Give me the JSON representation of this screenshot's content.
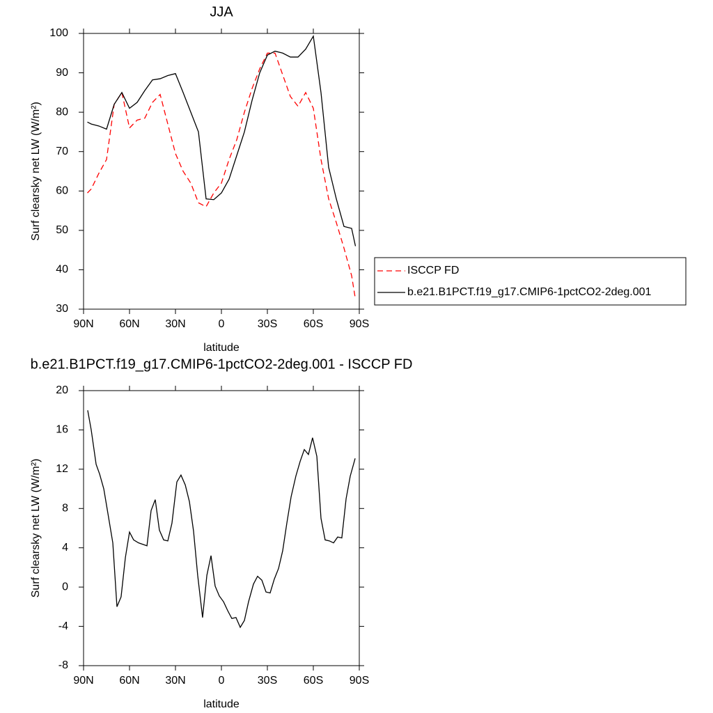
{
  "chart_data": [
    {
      "type": "line",
      "title": "JJA",
      "x_label": "latitude",
      "y_label": "Surf clearsky net LW (W/m²)",
      "x": [
        87.5,
        85,
        80,
        75,
        70,
        65,
        60,
        55,
        50,
        45,
        40,
        35,
        30,
        25,
        20,
        15,
        10,
        5,
        0,
        -5,
        -10,
        -15,
        -20,
        -25,
        -30,
        -35,
        -40,
        -45,
        -50,
        -55,
        -60,
        -65,
        -70,
        -75,
        -80,
        -85,
        -87.5
      ],
      "series": [
        {
          "name": "ISCCP FD",
          "color": "#ff0000",
          "dash": true,
          "values": [
            59.5,
            60.5,
            64.5,
            68,
            82,
            85,
            76,
            78,
            78.5,
            82.5,
            84.5,
            77,
            69.5,
            65,
            62,
            57,
            56,
            59.5,
            62,
            68,
            73,
            80,
            86,
            91,
            95,
            95,
            89.5,
            84,
            81.5,
            85,
            81,
            68,
            58,
            52,
            45.5,
            38.5,
            32.5
          ]
        },
        {
          "name": "b.e21.B1PCT.f19_g17.CMIP6-1pctCO2-2deg.001",
          "color": "#000000",
          "dash": false,
          "values": [
            77.5,
            77,
            76.5,
            75.7,
            82,
            85,
            81,
            82.5,
            85.5,
            88.2,
            88.5,
            89.3,
            89.8,
            85,
            80,
            75,
            58,
            57.8,
            59.5,
            63,
            69,
            75,
            83,
            90,
            94.5,
            95.5,
            95,
            94,
            94,
            96,
            99.3,
            85,
            66,
            58,
            51,
            50.5,
            46
          ]
        }
      ],
      "xlim": [
        90,
        -90
      ],
      "xticks": [
        {
          "value": 90,
          "label": "90N"
        },
        {
          "value": 60,
          "label": "60N"
        },
        {
          "value": 30,
          "label": "30N"
        },
        0,
        {
          "value": -30,
          "label": "30S"
        },
        {
          "value": -60,
          "label": "60S"
        },
        {
          "value": -90,
          "label": "90S"
        }
      ],
      "ylim": [
        30,
        100
      ],
      "yticks": [
        30,
        40,
        50,
        60,
        70,
        80,
        90,
        100
      ],
      "legend": "right"
    },
    {
      "type": "line",
      "title": "b.e21.B1PCT.f19_g17.CMIP6-1pctCO2-2deg.001 - ISCCP FD",
      "x_label": "latitude",
      "y_label": "Surf clearsky net LW (W/m²)",
      "x": [
        87.3,
        85.0,
        81.8,
        79.5,
        76.8,
        74.1,
        70.9,
        68.2,
        65.5,
        62.7,
        60.0,
        57.3,
        54.1,
        48.6,
        45.9,
        43.2,
        40.5,
        37.7,
        35.0,
        32.3,
        29.1,
        26.4,
        23.6,
        20.9,
        18.2,
        15.5,
        12.3,
        9.5,
        6.8,
        4.1,
        1.4,
        -1.4,
        -4.1,
        -6.8,
        -9.5,
        -12.3,
        -15.0,
        -17.7,
        -20.9,
        -23.6,
        -26.4,
        -29.1,
        -31.8,
        -34.5,
        -37.3,
        -40.0,
        -42.7,
        -45.5,
        -48.6,
        -51.4,
        -54.1,
        -56.8,
        -59.5,
        -62.3,
        -65.0,
        -67.7,
        -70.5,
        -73.2,
        -75.9,
        -78.6,
        -81.4,
        -84.1,
        -87.3
      ],
      "values": [
        18,
        16,
        12.5,
        11.5,
        10,
        7.5,
        4.5,
        -2,
        -1,
        3,
        5.6,
        4.8,
        4.5,
        4.2,
        7.8,
        8.9,
        5.8,
        4.8,
        4.7,
        6.5,
        10.7,
        11.4,
        10.4,
        8.7,
        5.7,
        1.2,
        -3.1,
        1.2,
        3.2,
        0.1,
        -0.9,
        -1.5,
        -2.4,
        -3.2,
        -3.1,
        -4.1,
        -3.4,
        -1.5,
        0.3,
        1.1,
        0.7,
        -0.5,
        -0.6,
        0.8,
        1.9,
        3.7,
        6.5,
        9.2,
        11.3,
        12.8,
        14,
        13.5,
        15.2,
        13.3,
        7,
        4.8,
        4.7,
        4.5,
        5.1,
        5,
        9,
        11.3,
        13.1
      ],
      "color": "#000000",
      "xlim": [
        90,
        -90
      ],
      "xticks": [
        {
          "value": 90,
          "label": "90N"
        },
        {
          "value": 60,
          "label": "60N"
        },
        {
          "value": 30,
          "label": "30N"
        },
        0,
        {
          "value": -30,
          "label": "30S"
        },
        {
          "value": -60,
          "label": "60S"
        },
        {
          "value": -90,
          "label": "90S"
        }
      ],
      "ylim": [
        -8,
        20
      ],
      "yticks": [
        -8,
        -4,
        0,
        4,
        8,
        12,
        16,
        20
      ]
    }
  ]
}
